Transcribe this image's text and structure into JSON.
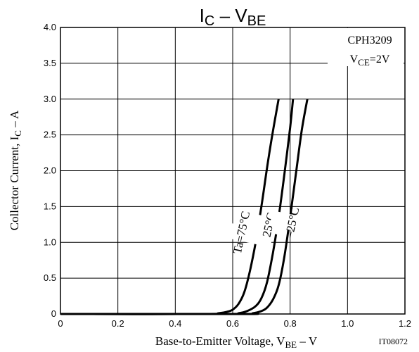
{
  "chart_data": {
    "type": "line",
    "title": {
      "main": "I",
      "sub1": "C",
      "sep": " – ",
      "main2": "V",
      "sub2": "BE"
    },
    "xlabel": {
      "pre": "Base-to-Emitter Voltage, V",
      "sub": "BE",
      "post": " – V"
    },
    "ylabel": {
      "pre": "Collector Current, I",
      "sub": "C",
      "post": " – A"
    },
    "xlim": [
      0,
      1.2
    ],
    "ylim": [
      0,
      4.0
    ],
    "x_ticks": [
      "0",
      "0.2",
      "0.4",
      "0.6",
      "0.8",
      "1.0",
      "1.2"
    ],
    "y_ticks": [
      "0",
      "0.5",
      "1.0",
      "1.5",
      "2.0",
      "2.5",
      "3.0",
      "3.5",
      "4.0"
    ],
    "grid": true,
    "part_number": "CPH3209",
    "condition": {
      "pre": "V",
      "sub": "CE",
      "post": "=2V"
    },
    "figure_code": "IT08072",
    "series": [
      {
        "name": "Ta=75°C",
        "x": [
          0.0,
          0.5,
          0.55,
          0.58,
          0.6,
          0.62,
          0.64,
          0.66,
          0.68,
          0.7,
          0.72,
          0.74,
          0.76
        ],
        "y": [
          0.0,
          0.0,
          0.01,
          0.03,
          0.06,
          0.14,
          0.3,
          0.6,
          1.0,
          1.5,
          2.05,
          2.55,
          3.0
        ]
      },
      {
        "name": "25°C",
        "x": [
          0.0,
          0.58,
          0.62,
          0.65,
          0.68,
          0.7,
          0.72,
          0.74,
          0.76,
          0.78,
          0.8,
          0.81
        ],
        "y": [
          0.0,
          0.0,
          0.01,
          0.04,
          0.11,
          0.22,
          0.45,
          0.85,
          1.35,
          1.95,
          2.6,
          3.0
        ]
      },
      {
        "name": "–25°C",
        "x": [
          0.0,
          0.63,
          0.67,
          0.7,
          0.72,
          0.74,
          0.76,
          0.78,
          0.8,
          0.82,
          0.84,
          0.86
        ],
        "y": [
          0.0,
          0.0,
          0.01,
          0.04,
          0.09,
          0.2,
          0.4,
          0.8,
          1.35,
          1.95,
          2.55,
          3.0
        ]
      }
    ]
  }
}
